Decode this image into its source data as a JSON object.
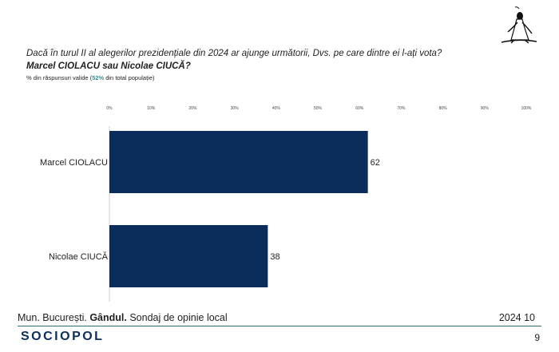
{
  "header": {
    "question": "Dacă în turul II al alegerilor prezidențiale din 2024 ar ajunge următorii, Dvs. pe care dintre ei l-ați vota?",
    "candidates": "Marcel CIOLACU sau Nicolae CIUCĂ?",
    "base_prefix": "% din răspunsuri valide (",
    "base_highlight": "52%",
    "base_suffix": " din total populație)"
  },
  "chart_data": {
    "type": "bar",
    "orientation": "horizontal",
    "categories": [
      "Marcel CIOLACU",
      "Nicolae CIUCĂ"
    ],
    "values": [
      62,
      38
    ],
    "xlim": [
      0,
      100
    ],
    "ticks": [
      "0%",
      "10%",
      "20%",
      "30%",
      "40%",
      "50%",
      "60%",
      "70%",
      "80%",
      "90%",
      "100%"
    ],
    "bar_color": "#0c2d5b",
    "grid": false,
    "legend": "none"
  },
  "footer": {
    "location": "Mun. București.",
    "source": "Gândul.",
    "description": " Sondaj de opinie local",
    "date": "2024 10",
    "brand": "SOCIOPOL",
    "page": "9"
  },
  "colors": {
    "accent": "#3a8f8f",
    "brand": "#0c2d5b"
  }
}
